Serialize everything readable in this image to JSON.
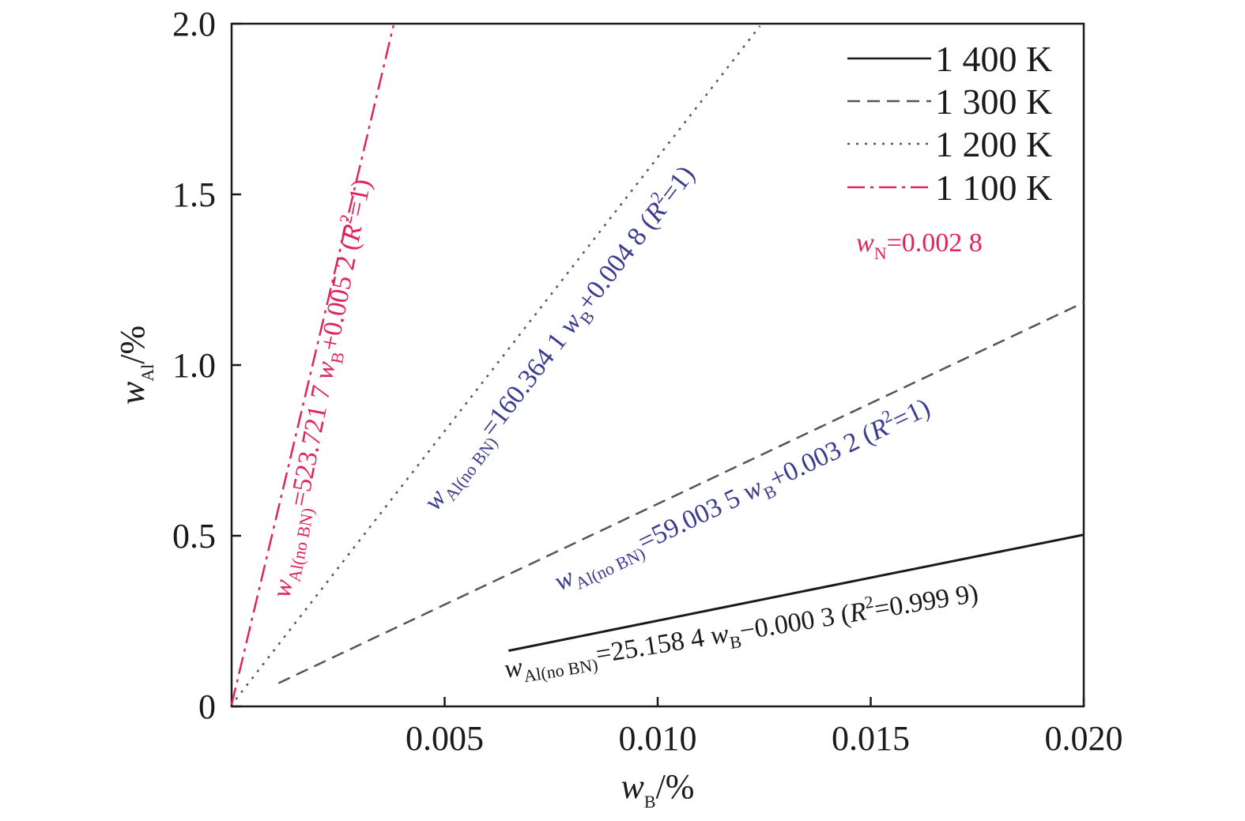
{
  "chart_data": {
    "type": "line",
    "xlim": [
      0,
      0.02
    ],
    "ylim": [
      0,
      2.0
    ],
    "xticks": [
      "0.005",
      "0.010",
      "0.015",
      "0.020"
    ],
    "yticks": [
      "0",
      "0.5",
      "1.0",
      "1.5",
      "2.0"
    ],
    "xlabel": {
      "main": "w",
      "sub": "B",
      "unit": "/%"
    },
    "ylabel": {
      "main": "w",
      "sub": "Al",
      "unit": "/%"
    },
    "legend_position": "top-right",
    "series": [
      {
        "name": "1 400 K",
        "style": "solid",
        "color": "#1a1a1a",
        "x": [
          0.0065,
          0.02
        ],
        "y": [
          0.1632,
          0.5029
        ]
      },
      {
        "name": "1 300 K",
        "style": "dashed",
        "color": "#555555",
        "x": [
          0.0011,
          0.02
        ],
        "y": [
          0.0681,
          1.1833
        ]
      },
      {
        "name": "1 200 K",
        "style": "dotted",
        "color": "#555555",
        "x": [
          0.0001,
          0.0124
        ],
        "y": [
          0.0208,
          1.9933
        ]
      },
      {
        "name": "1 100 K",
        "style": "dashdot",
        "color": "#e0245e",
        "x": [
          0.0,
          0.0038
        ],
        "y": [
          0.0052,
          1.9953
        ]
      }
    ],
    "annotations": {
      "nitrogen": {
        "main": "w",
        "sub": "N",
        "rest": "=0.002 8",
        "color": "#e0245e"
      },
      "eq_1400": {
        "main": "w",
        "sub": "Al(no BN)",
        "rest1": "=25.158 4 ",
        "main2": "w",
        "sub2": "B",
        "rest2": "−0.000 3 (",
        "r": "R",
        "sup": "2",
        "rest3": "=0.999 9)",
        "color": "#1a1a1a"
      },
      "eq_1300": {
        "main": "w",
        "sub": "Al(no BN)",
        "rest1": "=59.003 5 ",
        "main2": "w",
        "sub2": "B",
        "rest2": "+0.003 2 (",
        "r": "R",
        "sup": "2",
        "rest3": "=1)",
        "color": "#3b3b8f"
      },
      "eq_1200": {
        "main": "w",
        "sub": "Al(no BN)",
        "rest1": "=160.364 1 ",
        "main2": "w",
        "sub2": "B",
        "rest2": "+0.004 8 (",
        "r": "R",
        "sup": "2",
        "rest3": "=1)",
        "color": "#3b3b8f"
      },
      "eq_1100": {
        "main": "w",
        "sub": "Al(no BN)",
        "rest1": "=523.721 7 ",
        "main2": "w",
        "sub2": "B",
        "rest2": "+0.005 2 (",
        "r": "R",
        "sup": "2",
        "rest3": "=1)",
        "color": "#e0245e"
      }
    }
  }
}
